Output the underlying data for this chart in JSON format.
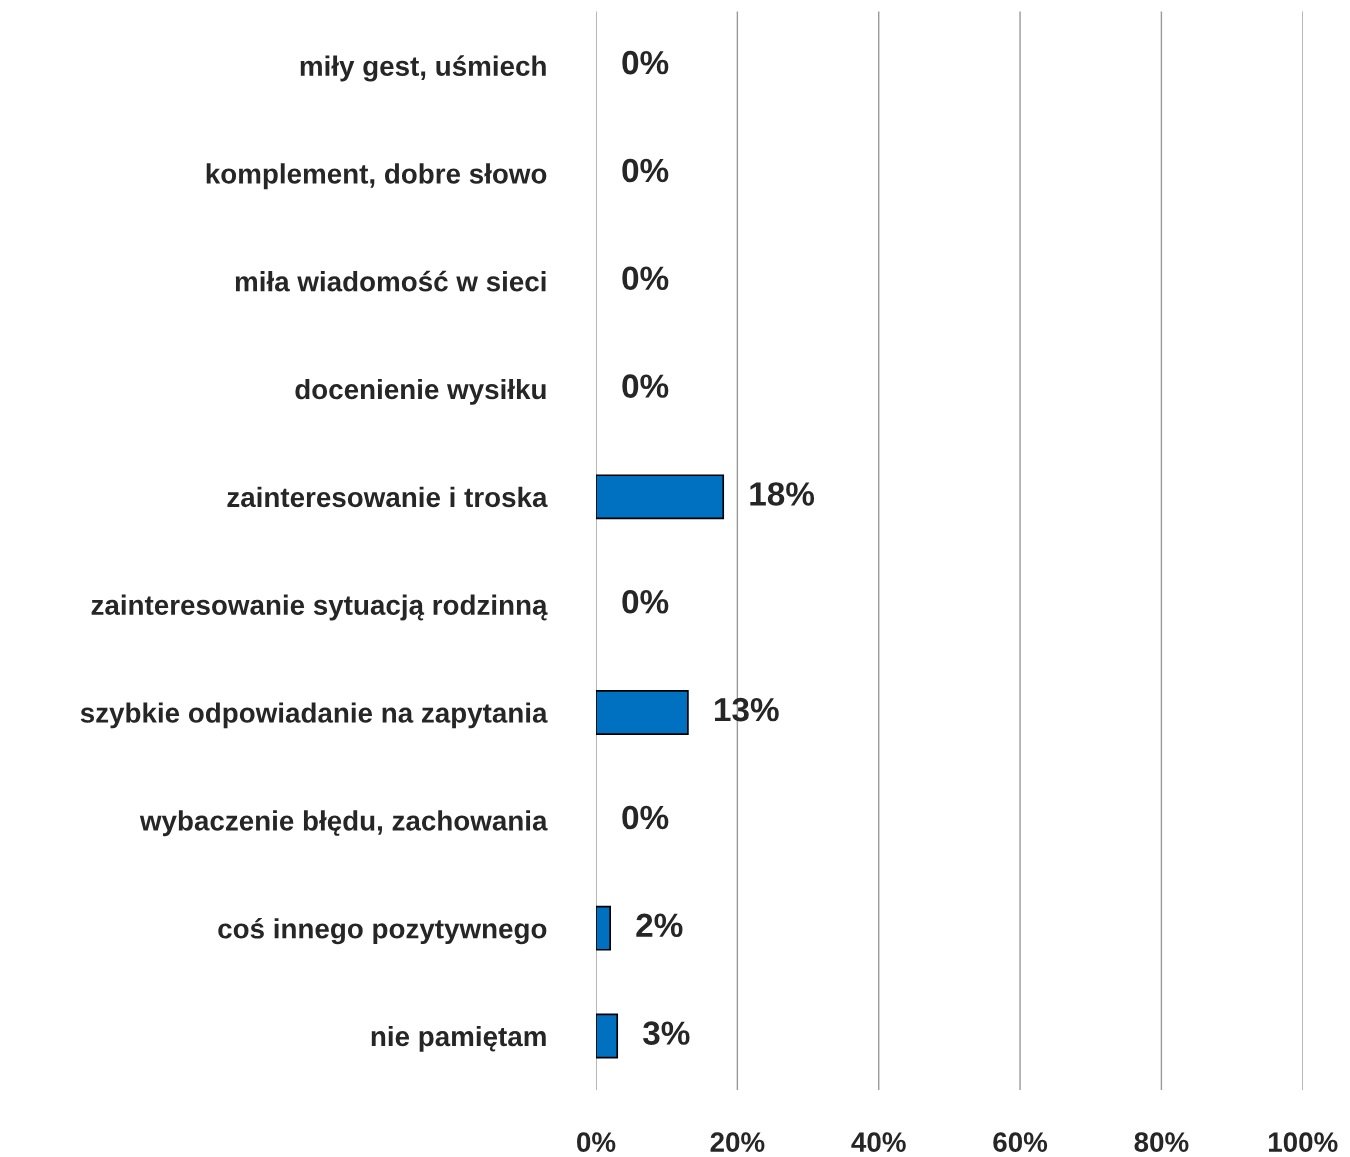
{
  "chart_data": {
    "type": "bar",
    "orientation": "horizontal",
    "categories": [
      "miły gest, uśmiech",
      "komplement, dobre słowo",
      "miła wiadomość w sieci",
      "docenienie wysiłku",
      "zainteresowanie i troska",
      "zainteresowanie sytuacją rodzinną",
      "szybkie odpowiadanie na zapytania",
      "wybaczenie błędu, zachowania",
      "coś innego pozytywnego",
      "nie pamiętam"
    ],
    "values": [
      0,
      0,
      0,
      0,
      18,
      0,
      13,
      0,
      2,
      3
    ],
    "value_labels": [
      "0%",
      "0%",
      "0%",
      "0%",
      "18%",
      "0%",
      "13%",
      "0%",
      "2%",
      "3%"
    ],
    "color": "#0070c0",
    "xlim": [
      0,
      100
    ],
    "xticks": [
      {
        "value": 0,
        "label": "0%"
      },
      {
        "value": 20,
        "label": "20%"
      },
      {
        "value": 40,
        "label": "40%"
      },
      {
        "value": 60,
        "label": "60%"
      },
      {
        "value": 80,
        "label": "80%"
      },
      {
        "value": 100,
        "label": "100%"
      }
    ],
    "grid": "x"
  }
}
